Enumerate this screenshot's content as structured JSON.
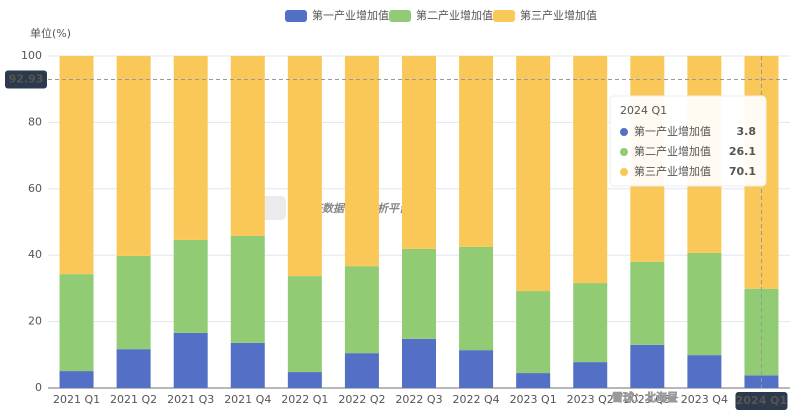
{
  "chart_data": {
    "type": "bar",
    "stacked": true,
    "y_label": "单位(%)",
    "categories": [
      "2021 Q1",
      "2021 Q2",
      "2021 Q3",
      "2021 Q4",
      "2022 Q1",
      "2022 Q2",
      "2022 Q3",
      "2022 Q4",
      "2023 Q1",
      "2023 Q2",
      "2023 Q3",
      "2023 Q4",
      "2024 Q1"
    ],
    "series": [
      {
        "name": "第一产业增加值",
        "color": "#5470c6",
        "values": [
          5.1,
          11.7,
          16.6,
          13.6,
          4.8,
          10.5,
          14.8,
          11.4,
          4.5,
          7.8,
          13.0,
          9.9,
          3.8
        ]
      },
      {
        "name": "第二产业增加值",
        "color": "#91cc75",
        "values": [
          29.2,
          28.1,
          28.0,
          32.2,
          28.9,
          26.2,
          27.1,
          31.1,
          24.7,
          23.8,
          25.0,
          30.8,
          26.1
        ]
      },
      {
        "name": "第三产业增加值",
        "color": "#fac858",
        "values": [
          65.7,
          60.2,
          55.4,
          54.2,
          66.3,
          63.3,
          58.1,
          57.5,
          70.8,
          68.4,
          62.0,
          59.3,
          70.1
        ]
      }
    ],
    "ylim": [
      0,
      100
    ],
    "yticks": [
      0,
      20,
      40,
      60,
      80,
      100
    ],
    "grid": true,
    "pointer": 92.93,
    "tooltip_index": 12,
    "watermark": "经济数据智能分析平台",
    "credit": "雪球：北海昼"
  }
}
